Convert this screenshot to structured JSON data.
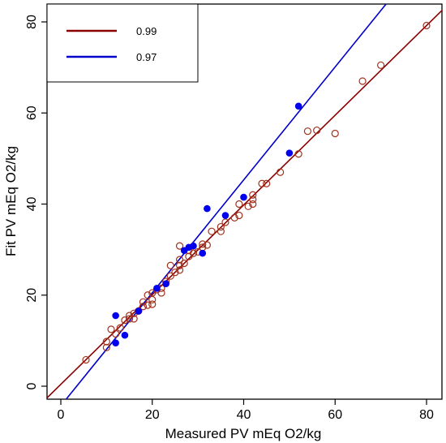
{
  "chart_data": {
    "type": "scatter",
    "title": "",
    "xlabel": "Measured PV mEq O2/kg",
    "ylabel": "Fit PV mEq O2/kg",
    "xlim": [
      -3,
      84
    ],
    "ylim": [
      -3,
      84
    ],
    "x_ticks": [
      "0",
      "20",
      "40",
      "60",
      "80"
    ],
    "y_ticks": [
      "0",
      "20",
      "40",
      "60",
      "80"
    ],
    "legend": {
      "placement": "top-left",
      "entries": [
        {
          "label": "0.99",
          "color": "#8b0000"
        },
        {
          "label": "0.97",
          "color": "#0000cc"
        }
      ]
    },
    "series": [
      {
        "marker": "open-circle",
        "color": "#a0301c",
        "points": [
          [
            5.5,
            5.8
          ],
          [
            10,
            8.5
          ],
          [
            10,
            9.8
          ],
          [
            11,
            12.5
          ],
          [
            12,
            11.5
          ],
          [
            13,
            12.8
          ],
          [
            14,
            14.5
          ],
          [
            15,
            14.8
          ],
          [
            15,
            15.5
          ],
          [
            16,
            14.8
          ],
          [
            16,
            16
          ],
          [
            17,
            16.5
          ],
          [
            18,
            17.5
          ],
          [
            18,
            18.5
          ],
          [
            19,
            17.8
          ],
          [
            19,
            20
          ],
          [
            20,
            18
          ],
          [
            20,
            19
          ],
          [
            20,
            20.5
          ],
          [
            21,
            21.2
          ],
          [
            22,
            20.5
          ],
          [
            22,
            21.5
          ],
          [
            23,
            23
          ],
          [
            24,
            24.2
          ],
          [
            24,
            26.5
          ],
          [
            25,
            25
          ],
          [
            26,
            25.5
          ],
          [
            26,
            26.5
          ],
          [
            26,
            27.8
          ],
          [
            26,
            30.8
          ],
          [
            27,
            27
          ],
          [
            28,
            28.5
          ],
          [
            28,
            29.8
          ],
          [
            29,
            29.2
          ],
          [
            30,
            29.5
          ],
          [
            31,
            30.5
          ],
          [
            31,
            31.2
          ],
          [
            32,
            31
          ],
          [
            33,
            34
          ],
          [
            35,
            34
          ],
          [
            35,
            35
          ],
          [
            36,
            36
          ],
          [
            38,
            37
          ],
          [
            39,
            37.5
          ],
          [
            39,
            40
          ],
          [
            41,
            39.5
          ],
          [
            42,
            40
          ],
          [
            42,
            41
          ],
          [
            42,
            42
          ],
          [
            44,
            44.5
          ],
          [
            45,
            44.5
          ],
          [
            48,
            47
          ],
          [
            52,
            51
          ],
          [
            54,
            56
          ],
          [
            56,
            56.2
          ],
          [
            60,
            55.5
          ],
          [
            66,
            67
          ],
          [
            70,
            70.5
          ],
          [
            80,
            79.2
          ]
        ]
      },
      {
        "marker": "filled-circle",
        "color": "#0000ee",
        "points": [
          [
            12,
            9.5
          ],
          [
            12,
            15.5
          ],
          [
            14,
            11.2
          ],
          [
            17,
            16.5
          ],
          [
            21,
            21.5
          ],
          [
            23,
            22.5
          ],
          [
            27,
            29.8
          ],
          [
            28,
            30.5
          ],
          [
            29,
            30.8
          ],
          [
            31,
            29.2
          ],
          [
            32,
            39
          ],
          [
            36,
            37.5
          ],
          [
            40,
            41.5
          ],
          [
            50,
            51.2
          ],
          [
            52,
            61.5
          ]
        ]
      }
    ],
    "fit_lines": [
      {
        "name": "0.99",
        "color": "#8b0000",
        "intercept": 0.4,
        "slope": 0.985
      },
      {
        "name": "0.97",
        "color": "#0000cc",
        "intercept": -4.3,
        "slope": 1.24
      }
    ]
  }
}
